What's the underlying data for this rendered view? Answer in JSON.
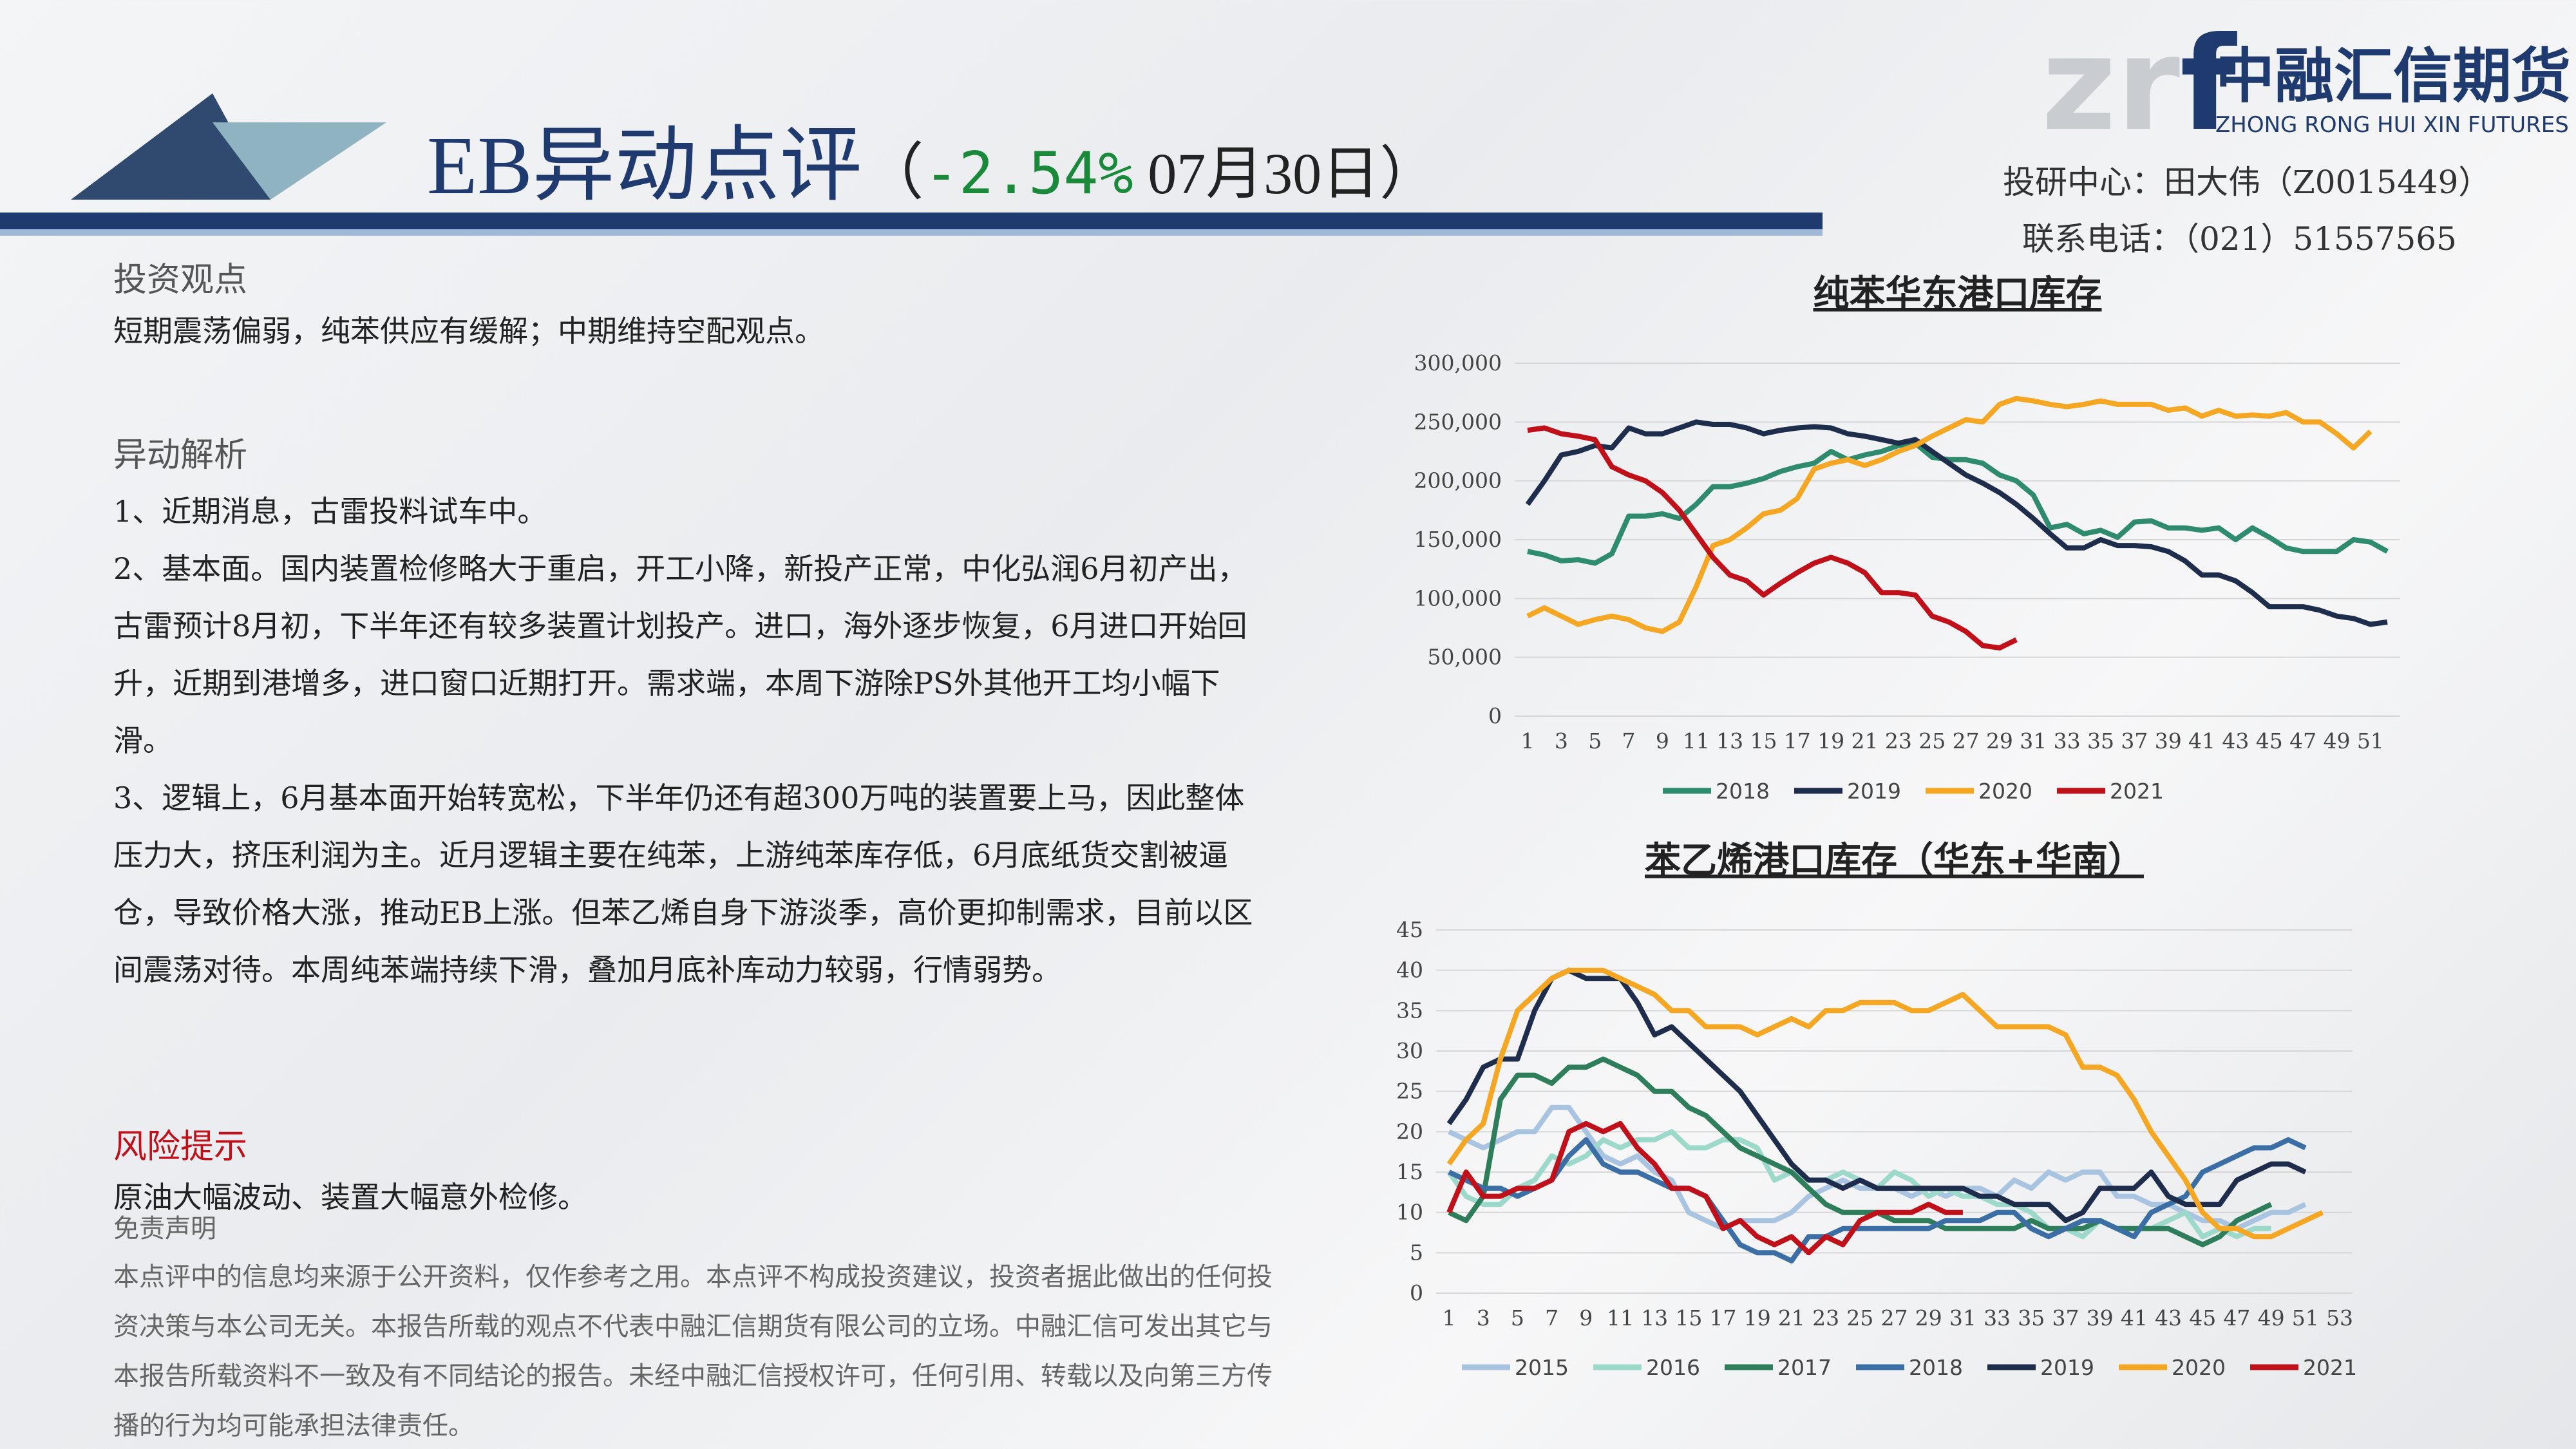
{
  "header": {
    "title": "EB异动点评",
    "paren_open": "（",
    "change": "-2.54%",
    "date": " 07月30日）",
    "logo_mark_a": "zr",
    "logo_mark_b": "f",
    "logo_cn": "中融汇信期货",
    "logo_en": "ZHONG RONG HUI XIN FUTURES",
    "author": "投研中心：田大伟（Z0015449）",
    "phone": "联系电话：（021）51557565"
  },
  "body": {
    "view_heading": "投资观点",
    "view_text": "短期震荡偏弱，纯苯供应有缓解；中期维持空配观点。",
    "analysis_heading": "异动解析",
    "analysis": [
      "1、近期消息，古雷投料试车中。",
      "2、基本面。国内装置检修略大于重启，开工小降，新投产正常，中化弘润6月初产出，古雷预计8月初，下半年还有较多装置计划投产。进口，海外逐步恢复，6月进口开始回升，近期到港增多，进口窗口近期打开。需求端，本周下游除PS外其他开工均小幅下滑。",
      "3、逻辑上，6月基本面开始转宽松，下半年仍还有超300万吨的装置要上马，因此整体压力大，挤压利润为主。近月逻辑主要在纯苯，上游纯苯库存低，6月底纸货交割被逼仓，导致价格大涨，推动EB上涨。但苯乙烯自身下游淡季，高价更抑制需求，目前以区间震荡对待。本周纯苯端持续下滑，叠加月底补库动力较弱，行情弱势。"
    ],
    "risk_heading": "风险提示",
    "risk_text": "原油大幅波动、装置大幅意外检修。",
    "disclaimer_heading": "免责声明",
    "disclaimer_text": "本点评中的信息均来源于公开资料，仅作参考之用。本点评不构成投资建议，投资者据此做出的任何投资决策与本公司无关。本报告所载的观点不代表中融汇信期货有限公司的立场。中融汇信可发出其它与本报告所载资料不一致及有不同结论的报告。未经中融汇信授权许可，任何引用、转载以及向第三方传播的行为均可能承担法律责任。"
  },
  "chart_data": [
    {
      "type": "line",
      "title": "纯苯华东港口库存",
      "grid": true,
      "legend": "bottom",
      "categories": [
        "1",
        null,
        "3",
        null,
        "5",
        null,
        "7",
        null,
        "9",
        null,
        "11",
        null,
        "13",
        null,
        "15",
        null,
        "17",
        null,
        "19",
        null,
        "21",
        null,
        "23",
        null,
        "25",
        null,
        "27",
        null,
        "29",
        null,
        "31",
        null,
        "33",
        null,
        "35",
        null,
        "37",
        null,
        "39",
        null,
        "41",
        null,
        "43",
        null,
        "45",
        null,
        "47",
        null,
        "49",
        null,
        "51",
        null
      ],
      "ylim": [
        0,
        300000
      ],
      "yticks": [
        0,
        {
          "value": 50000,
          "label": "50,000"
        },
        {
          "value": 100000,
          "label": "100,000"
        },
        {
          "value": 150000,
          "label": "150,000"
        },
        {
          "value": 200000,
          "label": "200,000"
        },
        {
          "value": 250000,
          "label": "250,000"
        },
        {
          "value": 300000,
          "label": "300,000"
        }
      ],
      "series": [
        {
          "name": "2018",
          "color": "#2e8b6e",
          "values": [
            140000,
            137000,
            132000,
            133000,
            130000,
            138000,
            170000,
            170000,
            172000,
            168000,
            180000,
            195000,
            195000,
            198000,
            202000,
            208000,
            212000,
            215000,
            225000,
            218000,
            222000,
            225000,
            230000,
            232000,
            220000,
            218000,
            218000,
            215000,
            205000,
            200000,
            188000,
            160000,
            163000,
            155000,
            158000,
            152000,
            165000,
            166000,
            160000,
            160000,
            158000,
            160000,
            150000,
            160000,
            152000,
            143000,
            140000,
            140000,
            140000,
            150000,
            148000,
            140000
          ]
        },
        {
          "name": "2019",
          "color": "#1f2d4d",
          "values": [
            180000,
            200000,
            222000,
            225000,
            230000,
            228000,
            245000,
            240000,
            240000,
            245000,
            250000,
            248000,
            248000,
            245000,
            240000,
            243000,
            245000,
            246000,
            245000,
            240000,
            238000,
            235000,
            232000,
            235000,
            225000,
            215000,
            205000,
            198000,
            190000,
            180000,
            168000,
            155000,
            143000,
            143000,
            150000,
            145000,
            145000,
            144000,
            140000,
            132000,
            120000,
            120000,
            115000,
            105000,
            93000,
            93000,
            93000,
            90000,
            85000,
            83000,
            78000,
            80000
          ]
        },
        {
          "name": "2020",
          "color": "#f5a623",
          "values": [
            85000,
            92000,
            85000,
            78000,
            82000,
            85000,
            82000,
            75000,
            72000,
            80000,
            110000,
            145000,
            150000,
            160000,
            172000,
            175000,
            185000,
            210000,
            215000,
            218000,
            213000,
            218000,
            225000,
            230000,
            238000,
            245000,
            252000,
            250000,
            265000,
            270000,
            268000,
            265000,
            263000,
            265000,
            268000,
            265000,
            265000,
            265000,
            260000,
            262000,
            255000,
            260000,
            255000,
            256000,
            255000,
            258000,
            250000,
            250000,
            240000,
            228000,
            242000,
            null
          ]
        },
        {
          "name": "2021",
          "color": "#c0101a",
          "values": [
            243000,
            245000,
            240000,
            238000,
            235000,
            212000,
            205000,
            200000,
            190000,
            175000,
            155000,
            135000,
            120000,
            115000,
            103000,
            113000,
            122000,
            130000,
            135000,
            130000,
            122000,
            105000,
            105000,
            103000,
            85000,
            80000,
            72000,
            60000,
            58000,
            65000,
            null,
            null,
            null,
            null,
            null,
            null,
            null,
            null,
            null,
            null,
            null,
            null,
            null,
            null,
            null,
            null,
            null,
            null,
            null,
            null,
            null,
            null
          ]
        }
      ]
    },
    {
      "type": "line",
      "title": "苯乙烯港口库存（华东+华南）",
      "grid": true,
      "legend": "bottom",
      "categories": [
        "1",
        null,
        "3",
        null,
        "5",
        null,
        "7",
        null,
        "9",
        null,
        "11",
        null,
        "13",
        null,
        "15",
        null,
        "17",
        null,
        "19",
        null,
        "21",
        null,
        "23",
        null,
        "25",
        null,
        "27",
        null,
        "29",
        null,
        "31",
        null,
        "33",
        null,
        "35",
        null,
        "37",
        null,
        "39",
        null,
        "41",
        null,
        "43",
        null,
        "45",
        null,
        "47",
        null,
        "49",
        null,
        "51",
        null,
        "53"
      ],
      "ylim": [
        0,
        45
      ],
      "yticks": [
        0,
        5,
        10,
        15,
        20,
        25,
        30,
        35,
        40,
        45
      ],
      "series": [
        {
          "name": "2015",
          "color": "#a9c4e0",
          "values": [
            20,
            19,
            18,
            19,
            20,
            20,
            23,
            23,
            20,
            17,
            16,
            17,
            15,
            14,
            10,
            9,
            8,
            9,
            9,
            9,
            10,
            12,
            13,
            14,
            13,
            13,
            13,
            12,
            13,
            12,
            13,
            13,
            12,
            14,
            13,
            15,
            14,
            15,
            15,
            12,
            12,
            11,
            11,
            10,
            9,
            9,
            8,
            9,
            10,
            10,
            11,
            null,
            null
          ]
        },
        {
          "name": "2016",
          "color": "#9dd9cb",
          "values": [
            15,
            12,
            11,
            11,
            13,
            14,
            17,
            16,
            17,
            19,
            18,
            19,
            19,
            20,
            18,
            18,
            19,
            19,
            18,
            14,
            15,
            14,
            14,
            15,
            14,
            13,
            15,
            14,
            12,
            13,
            12,
            12,
            11,
            11,
            10,
            8,
            8,
            7,
            9,
            8,
            8,
            8,
            9,
            10,
            7,
            8,
            7,
            8,
            8,
            null,
            null,
            null,
            null
          ]
        },
        {
          "name": "2017",
          "color": "#2e7d5b",
          "values": [
            10,
            9,
            12,
            24,
            27,
            27,
            26,
            28,
            28,
            29,
            28,
            27,
            25,
            25,
            23,
            22,
            20,
            18,
            17,
            16,
            15,
            13,
            11,
            10,
            10,
            10,
            9,
            9,
            9,
            8,
            8,
            8,
            8,
            8,
            9,
            8,
            8,
            8,
            9,
            8,
            8,
            8,
            8,
            7,
            6,
            7,
            9,
            10,
            11,
            null,
            null,
            null,
            null
          ]
        },
        {
          "name": "2018",
          "color": "#3a6ea5",
          "values": [
            15,
            14,
            13,
            13,
            12,
            13,
            14,
            17,
            19,
            16,
            15,
            15,
            14,
            13,
            13,
            12,
            9,
            6,
            5,
            5,
            4,
            7,
            7,
            8,
            8,
            8,
            8,
            8,
            8,
            9,
            9,
            9,
            10,
            10,
            8,
            7,
            8,
            9,
            9,
            8,
            7,
            10,
            11,
            12,
            15,
            16,
            17,
            18,
            18,
            19,
            18,
            null,
            null
          ]
        },
        {
          "name": "2019",
          "color": "#1f2d4d",
          "values": [
            21,
            24,
            28,
            29,
            29,
            35,
            39,
            40,
            39,
            39,
            39,
            36,
            32,
            33,
            31,
            29,
            27,
            25,
            22,
            19,
            16,
            14,
            14,
            13,
            14,
            13,
            13,
            13,
            13,
            13,
            13,
            12,
            12,
            11,
            11,
            11,
            9,
            10,
            13,
            13,
            13,
            15,
            12,
            11,
            11,
            11,
            14,
            15,
            16,
            16,
            15,
            null,
            null
          ]
        },
        {
          "name": "2020",
          "color": "#f5a623",
          "values": [
            16,
            19,
            21,
            29,
            35,
            37,
            39,
            40,
            40,
            40,
            39,
            38,
            37,
            35,
            35,
            33,
            33,
            33,
            32,
            33,
            34,
            33,
            35,
            35,
            36,
            36,
            36,
            35,
            35,
            36,
            37,
            35,
            33,
            33,
            33,
            33,
            32,
            28,
            28,
            27,
            24,
            20,
            17,
            14,
            10,
            8,
            8,
            7,
            7,
            8,
            9,
            10,
            null
          ]
        },
        {
          "name": "2021",
          "color": "#c0101a",
          "values": [
            10,
            15,
            12,
            12,
            13,
            13,
            14,
            20,
            21,
            20,
            21,
            18,
            16,
            13,
            13,
            12,
            8,
            9,
            7,
            6,
            7,
            5,
            7,
            6,
            9,
            10,
            10,
            10,
            11,
            10,
            10,
            null,
            null,
            null,
            null,
            null,
            null,
            null,
            null,
            null,
            null,
            null,
            null,
            null,
            null,
            null,
            null,
            null,
            null,
            null,
            null,
            null,
            null
          ]
        }
      ]
    }
  ]
}
